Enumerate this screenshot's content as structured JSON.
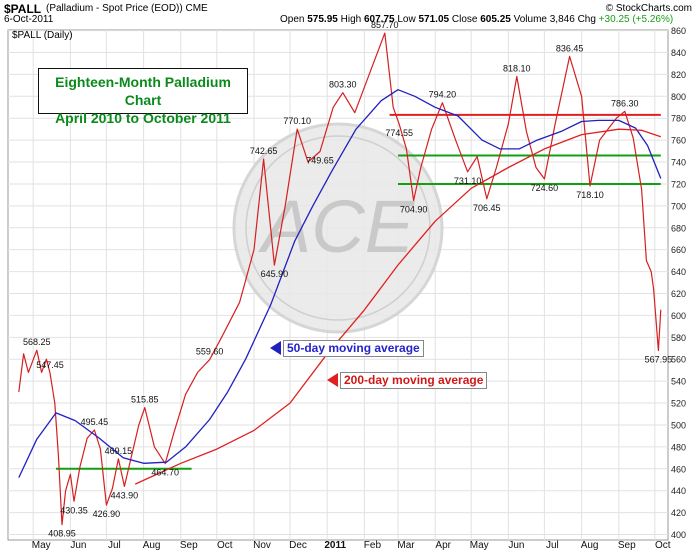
{
  "header": {
    "symbol": "$PALL",
    "description": "(Palladium - Spot Price (EOD)) CME",
    "date": "6-Oct-2011",
    "source": "© StockCharts.com",
    "ohlc": {
      "open_label": "Open",
      "open": "575.95",
      "high_label": "High",
      "high": "607.75",
      "low_label": "Low",
      "low": "571.05",
      "close_label": "Close",
      "close": "605.25",
      "volume_label": "Volume",
      "volume": "3,846",
      "chg_label": "Chg",
      "chg": "+30.25 (+5.26%)",
      "chg_color": "#18a018"
    }
  },
  "pane_label": "$PALL (Daily)",
  "annotations": {
    "title_line1": "Eighteen-Month Palladium Chart",
    "title_line2": "April 2010 to October 2011",
    "ma50_label": "50-day moving average",
    "ma200_label": "200-day moving average",
    "watermark": "ACE"
  },
  "colors": {
    "price": "#d42020",
    "ma50": "#2020c0",
    "ma200": "#e02020",
    "support_green": "#10a010",
    "resistance_red": "#e02020",
    "grid": "#e2e2e2"
  },
  "chart_data": {
    "type": "line",
    "title": "Eighteen-Month Palladium Chart",
    "subtitle": "April 2010 to October 2011",
    "x_labels": [
      "May",
      "Jun",
      "Jul",
      "Aug",
      "Sep",
      "Oct",
      "Nov",
      "Dec",
      "2011",
      "Feb",
      "Mar",
      "Apr",
      "May",
      "Jun",
      "Jul",
      "Aug",
      "Sep",
      "Oct"
    ],
    "y_ticks": [
      400,
      420,
      440,
      460,
      480,
      500,
      520,
      540,
      560,
      580,
      600,
      620,
      640,
      660,
      680,
      700,
      720,
      740,
      760,
      780,
      800,
      820,
      840,
      860
    ],
    "ylim": [
      395,
      866
    ],
    "grid": true,
    "series": [
      {
        "name": "$PALL (Daily)",
        "points": [
          [
            "2010-04-19",
            530
          ],
          [
            "2010-04-23",
            565
          ],
          [
            "2010-04-27",
            548
          ],
          [
            "2010-05-04",
            568.25
          ],
          [
            "2010-05-08",
            548
          ],
          [
            "2010-05-12",
            560
          ],
          [
            "2010-05-15",
            547.45
          ],
          [
            "2010-05-19",
            520
          ],
          [
            "2010-05-22",
            472
          ],
          [
            "2010-05-25",
            408.95
          ],
          [
            "2010-05-28",
            440
          ],
          [
            "2010-06-01",
            455
          ],
          [
            "2010-06-04",
            430.35
          ],
          [
            "2010-06-09",
            462
          ],
          [
            "2010-06-15",
            488
          ],
          [
            "2010-06-21",
            495.45
          ],
          [
            "2010-06-26",
            478
          ],
          [
            "2010-07-01",
            426.9
          ],
          [
            "2010-07-06",
            442
          ],
          [
            "2010-07-11",
            469.15
          ],
          [
            "2010-07-16",
            443.9
          ],
          [
            "2010-07-22",
            472
          ],
          [
            "2010-07-28",
            500
          ],
          [
            "2010-08-02",
            515.85
          ],
          [
            "2010-08-10",
            480
          ],
          [
            "2010-08-19",
            464.7
          ],
          [
            "2010-08-26",
            492
          ],
          [
            "2010-09-05",
            528
          ],
          [
            "2010-09-15",
            548
          ],
          [
            "2010-09-25",
            559.6
          ],
          [
            "2010-10-05",
            580
          ],
          [
            "2010-10-20",
            612
          ],
          [
            "2010-11-01",
            660
          ],
          [
            "2010-11-09",
            742.65
          ],
          [
            "2010-11-18",
            645.9
          ],
          [
            "2010-11-27",
            700
          ],
          [
            "2010-12-07",
            770.1
          ],
          [
            "2010-12-16",
            740
          ],
          [
            "2010-12-26",
            749.65
          ],
          [
            "2011-01-06",
            790
          ],
          [
            "2011-01-14",
            803.3
          ],
          [
            "2011-01-24",
            785
          ],
          [
            "2011-02-05",
            820
          ],
          [
            "2011-02-18",
            857.7
          ],
          [
            "2011-02-25",
            790
          ],
          [
            "2011-03-02",
            774.55
          ],
          [
            "2011-03-08",
            752
          ],
          [
            "2011-03-14",
            704.9
          ],
          [
            "2011-03-20",
            735
          ],
          [
            "2011-03-29",
            770
          ],
          [
            "2011-04-07",
            794.2
          ],
          [
            "2011-04-18",
            760
          ],
          [
            "2011-04-28",
            731.1
          ],
          [
            "2011-05-06",
            745
          ],
          [
            "2011-05-14",
            706.45
          ],
          [
            "2011-05-22",
            735
          ],
          [
            "2011-06-01",
            775
          ],
          [
            "2011-06-08",
            818.1
          ],
          [
            "2011-06-16",
            768
          ],
          [
            "2011-06-24",
            735
          ],
          [
            "2011-07-01",
            724.6
          ],
          [
            "2011-07-10",
            775
          ],
          [
            "2011-07-22",
            836.45
          ],
          [
            "2011-08-01",
            800
          ],
          [
            "2011-08-08",
            718.1
          ],
          [
            "2011-08-16",
            760
          ],
          [
            "2011-08-30",
            780
          ],
          [
            "2011-09-06",
            786.3
          ],
          [
            "2011-09-13",
            762
          ],
          [
            "2011-09-20",
            715
          ],
          [
            "2011-09-24",
            650
          ],
          [
            "2011-09-28",
            640
          ],
          [
            "2011-09-30",
            624
          ],
          [
            "2011-10-04",
            567.95
          ],
          [
            "2011-10-06",
            605.25
          ]
        ]
      },
      {
        "name": "50-day moving average",
        "points": [
          [
            "2010-04-19",
            452
          ],
          [
            "2010-05-04",
            487
          ],
          [
            "2010-05-20",
            511
          ],
          [
            "2010-06-05",
            504
          ],
          [
            "2010-06-25",
            488
          ],
          [
            "2010-07-15",
            470
          ],
          [
            "2010-08-01",
            465
          ],
          [
            "2010-08-20",
            466
          ],
          [
            "2010-09-05",
            480
          ],
          [
            "2010-09-25",
            505
          ],
          [
            "2010-10-10",
            530
          ],
          [
            "2010-10-25",
            560
          ],
          [
            "2010-11-15",
            610
          ],
          [
            "2010-12-05",
            668
          ],
          [
            "2010-12-20",
            700
          ],
          [
            "2011-01-05",
            732
          ],
          [
            "2011-01-25",
            770
          ],
          [
            "2011-02-15",
            796
          ],
          [
            "2011-03-01",
            806
          ],
          [
            "2011-03-15",
            800
          ],
          [
            "2011-04-01",
            790
          ],
          [
            "2011-04-20",
            782
          ],
          [
            "2011-05-10",
            760
          ],
          [
            "2011-05-25",
            752
          ],
          [
            "2011-06-10",
            752
          ],
          [
            "2011-06-25",
            760
          ],
          [
            "2011-07-15",
            768
          ],
          [
            "2011-08-01",
            777
          ],
          [
            "2011-08-15",
            778
          ],
          [
            "2011-09-01",
            778
          ],
          [
            "2011-09-15",
            771
          ],
          [
            "2011-09-25",
            755
          ],
          [
            "2011-10-06",
            725
          ]
        ]
      },
      {
        "name": "200-day moving average",
        "points": [
          [
            "2010-07-25",
            446
          ],
          [
            "2010-09-01",
            465
          ],
          [
            "2010-10-01",
            478
          ],
          [
            "2010-11-01",
            495
          ],
          [
            "2010-12-01",
            520
          ],
          [
            "2011-01-01",
            565
          ],
          [
            "2011-02-01",
            605
          ],
          [
            "2011-03-01",
            646
          ],
          [
            "2011-04-01",
            686
          ],
          [
            "2011-05-01",
            716
          ],
          [
            "2011-06-01",
            735
          ],
          [
            "2011-07-01",
            752
          ],
          [
            "2011-08-01",
            765
          ],
          [
            "2011-09-01",
            770
          ],
          [
            "2011-09-20",
            769
          ],
          [
            "2011-10-06",
            763
          ]
        ]
      }
    ],
    "horizontal_lines": [
      {
        "color": "red",
        "y": 783,
        "from": "2011-02-22",
        "to": "2011-10-06"
      },
      {
        "color": "green",
        "y": 746,
        "from": "2011-03-01",
        "to": "2011-10-06"
      },
      {
        "color": "green",
        "y": 720,
        "from": "2011-03-01",
        "to": "2011-10-06"
      },
      {
        "color": "green",
        "y": 460,
        "from": "2010-05-20",
        "to": "2010-09-10"
      }
    ],
    "data_labels": [
      {
        "date": "2010-05-04",
        "text": "568.25",
        "pos": "above"
      },
      {
        "date": "2010-05-15",
        "text": "547.45",
        "pos": "above"
      },
      {
        "date": "2010-05-25",
        "text": "408.95",
        "pos": "below"
      },
      {
        "date": "2010-06-04",
        "text": "430.35",
        "pos": "below"
      },
      {
        "date": "2010-06-21",
        "text": "495.45",
        "pos": "above"
      },
      {
        "date": "2010-07-01",
        "text": "426.90",
        "pos": "below"
      },
      {
        "date": "2010-07-11",
        "text": "469.15",
        "pos": "above"
      },
      {
        "date": "2010-07-16",
        "text": "443.90",
        "pos": "below"
      },
      {
        "date": "2010-08-02",
        "text": "515.85",
        "pos": "above"
      },
      {
        "date": "2010-08-19",
        "text": "464.70",
        "pos": "below"
      },
      {
        "date": "2010-09-25",
        "text": "559.60",
        "pos": "above"
      },
      {
        "date": "2010-11-09",
        "text": "742.65",
        "pos": "above"
      },
      {
        "date": "2010-11-18",
        "text": "645.90",
        "pos": "below"
      },
      {
        "date": "2010-12-07",
        "text": "770.10",
        "pos": "above"
      },
      {
        "date": "2010-12-26",
        "text": "749.65",
        "pos": "below"
      },
      {
        "date": "2011-01-14",
        "text": "803.30",
        "pos": "above"
      },
      {
        "date": "2011-02-18",
        "text": "857.70",
        "pos": "above"
      },
      {
        "date": "2011-03-02",
        "text": "774.55",
        "pos": "below"
      },
      {
        "date": "2011-03-14",
        "text": "704.90",
        "pos": "below"
      },
      {
        "date": "2011-04-07",
        "text": "794.20",
        "pos": "above"
      },
      {
        "date": "2011-04-28",
        "text": "731.10",
        "pos": "below"
      },
      {
        "date": "2011-05-14",
        "text": "706.45",
        "pos": "below"
      },
      {
        "date": "2011-06-08",
        "text": "818.10",
        "pos": "above"
      },
      {
        "date": "2011-07-01",
        "text": "724.60",
        "pos": "below"
      },
      {
        "date": "2011-07-22",
        "text": "836.45",
        "pos": "above"
      },
      {
        "date": "2011-08-08",
        "text": "718.10",
        "pos": "below"
      },
      {
        "date": "2011-09-06",
        "text": "786.30",
        "pos": "above"
      },
      {
        "date": "2011-10-04",
        "text": "567.95",
        "pos": "below"
      }
    ]
  }
}
